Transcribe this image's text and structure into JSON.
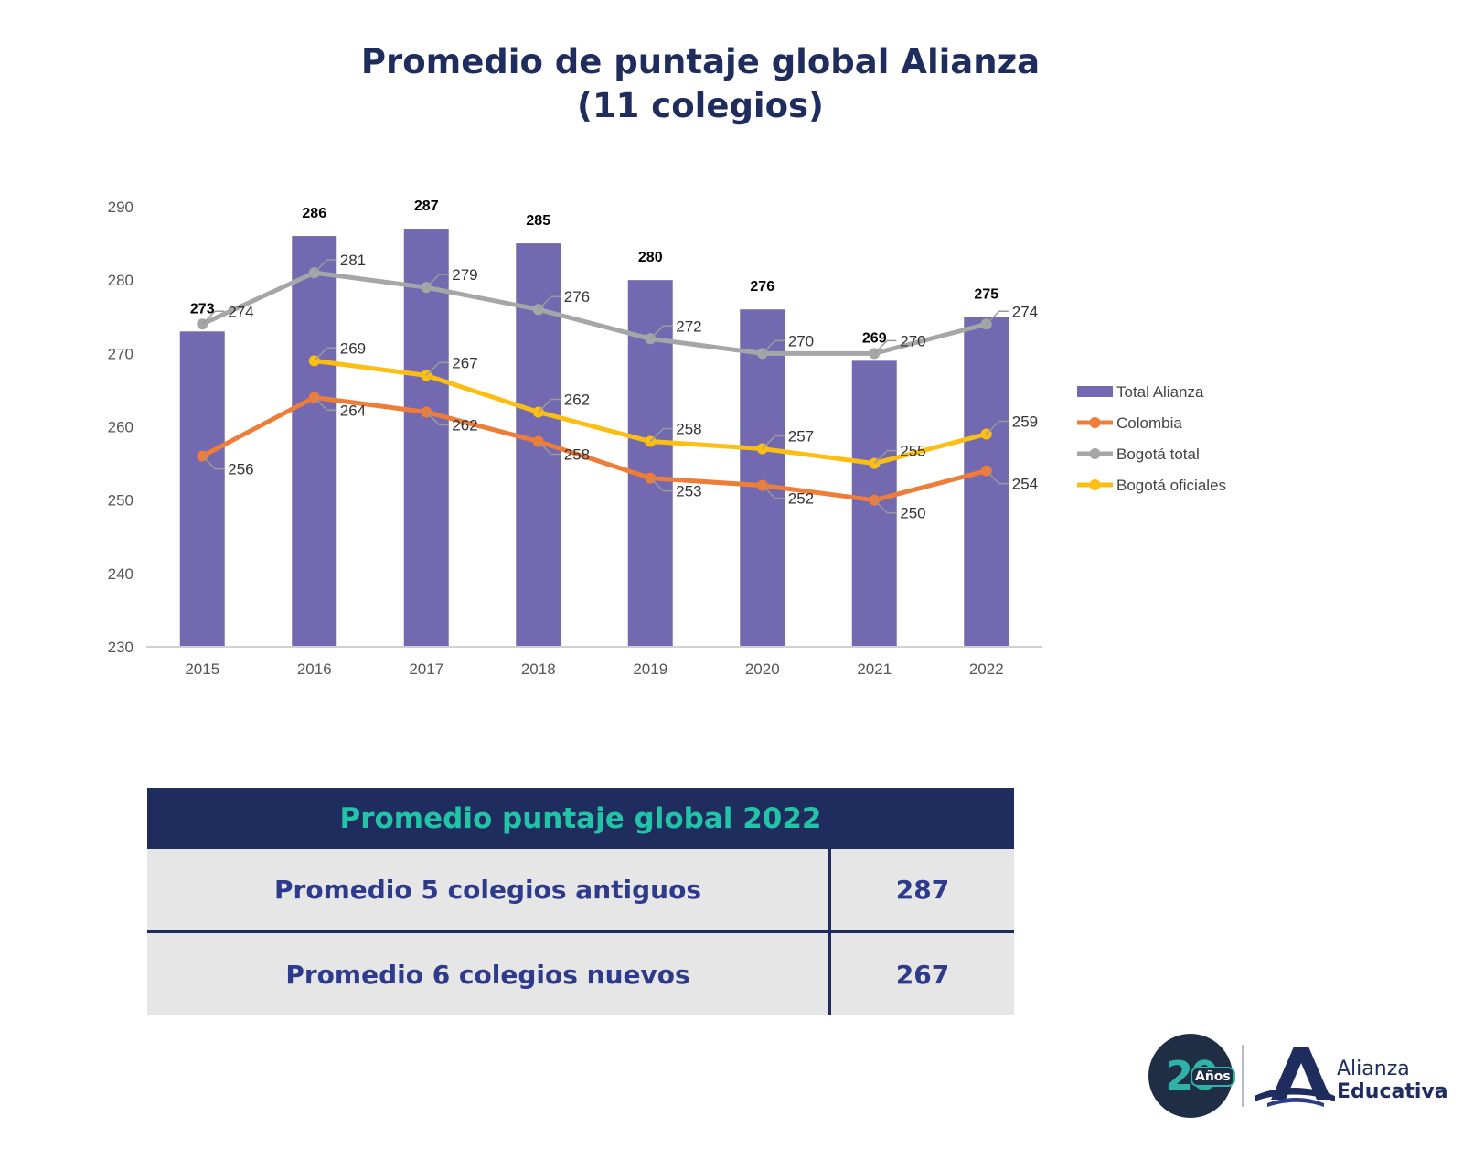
{
  "title": {
    "line1": "Promedio de puntaje global Alianza",
    "line2": "(11 colegios)"
  },
  "chart_data": {
    "type": "bar",
    "categories": [
      "2015",
      "2016",
      "2017",
      "2018",
      "2019",
      "2020",
      "2021",
      "2022"
    ],
    "ylim": [
      230,
      290
    ],
    "yticks": [
      230,
      240,
      250,
      260,
      270,
      280,
      290
    ],
    "grid": false,
    "legend_position": "right",
    "series": [
      {
        "name": "Total Alianza",
        "kind": "bar",
        "color": "#7369b0",
        "values": [
          273,
          286,
          287,
          285,
          280,
          276,
          269,
          275
        ]
      },
      {
        "name": "Colombia",
        "kind": "line",
        "color": "#ee7d3a",
        "values": [
          256,
          264,
          262,
          258,
          253,
          252,
          250,
          254
        ]
      },
      {
        "name": "Bogotá total",
        "kind": "line",
        "color": "#a6a6a6",
        "values": [
          274,
          281,
          279,
          276,
          272,
          270,
          270,
          274
        ]
      },
      {
        "name": "Bogotá oficiales",
        "kind": "line",
        "color": "#fbbf14",
        "values": [
          null,
          269,
          267,
          262,
          258,
          257,
          255,
          259
        ]
      }
    ]
  },
  "summary": {
    "header": "Promedio puntaje global 2022",
    "rows": [
      {
        "label": "Promedio 5 colegios antiguos",
        "value": "287"
      },
      {
        "label": "Promedio 6 colegios nuevos",
        "value": "267"
      }
    ]
  },
  "logo": {
    "badge_number": "20",
    "badge_word": "Años",
    "line1": "Alianza",
    "line2": "Educativa"
  },
  "colors": {
    "navy": "#1f2d5e",
    "teal": "#21c4a6",
    "bar": "#7369b0"
  }
}
